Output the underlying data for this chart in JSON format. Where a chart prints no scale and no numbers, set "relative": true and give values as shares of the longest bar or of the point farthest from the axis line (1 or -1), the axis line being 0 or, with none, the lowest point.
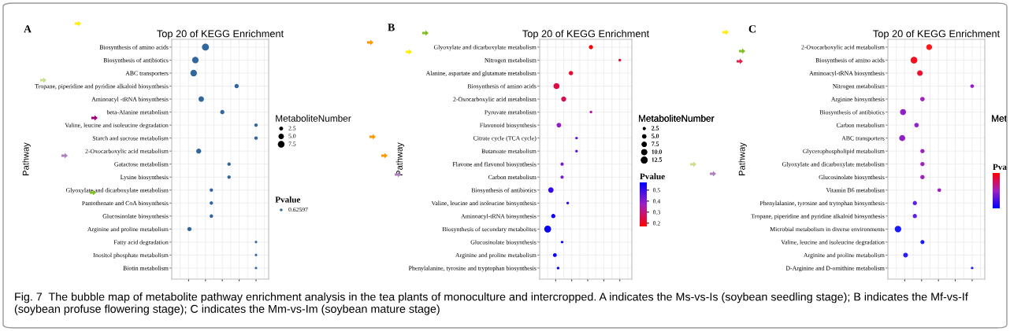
{
  "chart_data": [
    {
      "type": "bubble",
      "title": "Top 20 of KEGG Enrichment",
      "ylabel": "Pathway",
      "relative": true,
      "orientation": "horizontal",
      "grid": true,
      "legend": "right",
      "annotations": [
        "A",
        "Fig. 7  The bubble map of metabolite pathway enrichment analysis in the tea plants of monoculture and intercropped. A indicates the Ms-vs-Is (soybean seedling stage); B indicates the Mf-vs-If (soybean profuse flowering stage); C indicates the Mm-vs-Im (soybean mature stage)"
      ],
      "categories": [
        "Biosynthesis of amino acids",
        "Biosynthesis of antibiotics",
        "ABC transporters",
        "Tropane, piperidine and pyridine alkaloid biosynthesis",
        "Aminoacyl -tRNA biosynthesis",
        "beta-Alanine metabolism",
        "Valine, leucine and isoleucine degradation",
        "Starch and sucrose metabolism",
        "2-Oxocarboxylic acid metabolism",
        "Gatactose metabolism",
        "Lysine biosynthesis",
        "Glyoxylate and dicarboxylate metabolism",
        "Pantothenate and CoA biosynthesis",
        "Glucosinolate biosynthesis",
        "Arginine and proline metabolism",
        "Fatty acid degradation",
        "Inositol phosphate metabolism",
        "Biotin metabolism"
      ],
      "legend_title": "MetaboliteNumber",
      "size_legend": [
        2.5,
        {
          "value": 5,
          "label": "5.0"
        },
        7.5
      ],
      "clabel": "Pvalue",
      "series": [
        {
          "name": "0.62597",
          "color": "#31679d",
          "values": [
            0.4,
            0.28,
            0.26,
            0.77,
            0.35,
            0.6,
            1,
            1,
            0.32,
            0.68,
            0.68,
            0.47,
            0.47,
            0.47,
            0.21,
            1,
            1,
            1
          ],
          "sizes": [
            8,
            7,
            7,
            3,
            5,
            3,
            2,
            2,
            4,
            2,
            2,
            2,
            2,
            2,
            3,
            1,
            1,
            1
          ]
        }
      ]
    },
    {
      "type": "bubble",
      "title": "Top 20 of KEGG Enrichment",
      "ylabel": "Pathway",
      "relative": true,
      "orientation": "horizontal",
      "grid": true,
      "annotations": [
        "B"
      ],
      "categories": [
        "Glyoxylate and dicarboxylate metabolism",
        "Nitrogen metabolism",
        "Alanine, aspartate and glutamate metabolism",
        "Biosynthesis of amino acids",
        "2-Oxocarboxylic acid metabolism",
        "Pyruvate metabolism",
        "Flavonoid biosynthesis",
        "Citrate cycle (TCA cycle)",
        "Butanoate metabolism",
        "Flavone and flavonol biosynthesis",
        "Carbon metabolism",
        "Biosynthesis of antibiotics",
        "Valine, leucine and isoleucine biosynthesis",
        "Aminoacyl-tRNA biosynthesis",
        "Biosynthesis of secondary metabolites",
        "Glucosinolate biosynthesis",
        "Arginine and proline metabolism",
        "Phenylalanine, tyrosine and tryptophan biosynthesis"
      ],
      "legend_title": "MetaboliteNumber",
      "size_legend": [
        2.5,
        {
          "value": 5,
          "label": "5.0"
        },
        7.5,
        {
          "value": 10,
          "label": "10.0"
        },
        12.5
      ],
      "clabel": "Pvalue",
      "clim": [
        0.17,
        0.57
      ],
      "cticks": [
        0.2,
        0.3,
        0.4,
        0.5
      ],
      "series": [
        {
          "values": [
            0.64,
            1,
            0.39,
            0.21,
            0.3,
            0.64,
            0.24,
            0.46,
            0.46,
            0.28,
            0.28,
            0.14,
            0.35,
            0.17,
            0.1,
            0.28,
            0.19,
            0.23
          ],
          "sizes": [
            5,
            2,
            5,
            10,
            7,
            2,
            6,
            2,
            2,
            3,
            3,
            8,
            2,
            5,
            13,
            2,
            4,
            2
          ],
          "cvalues": [
            0.18,
            0.22,
            0.22,
            0.24,
            0.26,
            0.33,
            0.38,
            0.45,
            0.45,
            0.42,
            0.42,
            0.5,
            0.5,
            0.55,
            0.56,
            0.56,
            0.56,
            0.56
          ]
        }
      ]
    },
    {
      "type": "bubble",
      "title": "Top 20 of KEGG Enrichment",
      "ylabel": "Pathway",
      "relative": true,
      "orientation": "horizontal",
      "grid": true,
      "annotations": [
        "C"
      ],
      "categories": [
        "2-Oxocarboxylic acid metabolism",
        "Biosynthesis of amino acids",
        "Aminoacyl-tRNA biosynthesis",
        "Nitrogen metabolism",
        "Arginine biosynthesis",
        "Biosynthesis of antibiotics",
        "Carbon metabolism",
        "ABC transporters",
        "Glycerophospholipid metabolism",
        "Glyoxylate and dicarboxylate metabolism",
        "Glucosinolate biosynthesis",
        "Vitamin B6 metabolism",
        "Phenylalanine, tyrosine and trytophan biosynthesis",
        "Tropane, piperidine and pyridine alkaloid biosynthesis",
        "Microbial metabolism in diverse environments",
        "Valine, leucine and isoleucine degradation",
        "Arginine and proline metabolism",
        "D-Arginine and D-ornithine metabolism"
      ],
      "legend_title": "Met",
      "clabel": "Pva",
      "series": [
        {
          "values": [
            0.49,
            0.31,
            0.38,
            1,
            0.41,
            0.18,
            0.34,
            0.17,
            0.41,
            0.41,
            0.41,
            0.61,
            0.32,
            0.32,
            0.12,
            0.41,
            0.21,
            1
          ],
          "sizes": [
            0.75,
            1,
            0.7,
            0.3,
            0.45,
            0.8,
            0.45,
            0.8,
            0.4,
            0.4,
            0.4,
            0.3,
            0.4,
            0.4,
            0.95,
            0.35,
            0.5,
            0.15
          ],
          "colors": [
            "#ff1a1a",
            "#f01020",
            "#ee1030",
            "#9a1ad0",
            "#a020c0",
            "#9020c8",
            "#9020c8",
            "#9020c8",
            "#a020c0",
            "#a020c0",
            "#a020c0",
            "#a020c0",
            "#6020e0",
            "#6020e0",
            "#1a1aff",
            "#1a1aff",
            "#2a20f0",
            "#2020ff"
          ]
        }
      ]
    }
  ]
}
